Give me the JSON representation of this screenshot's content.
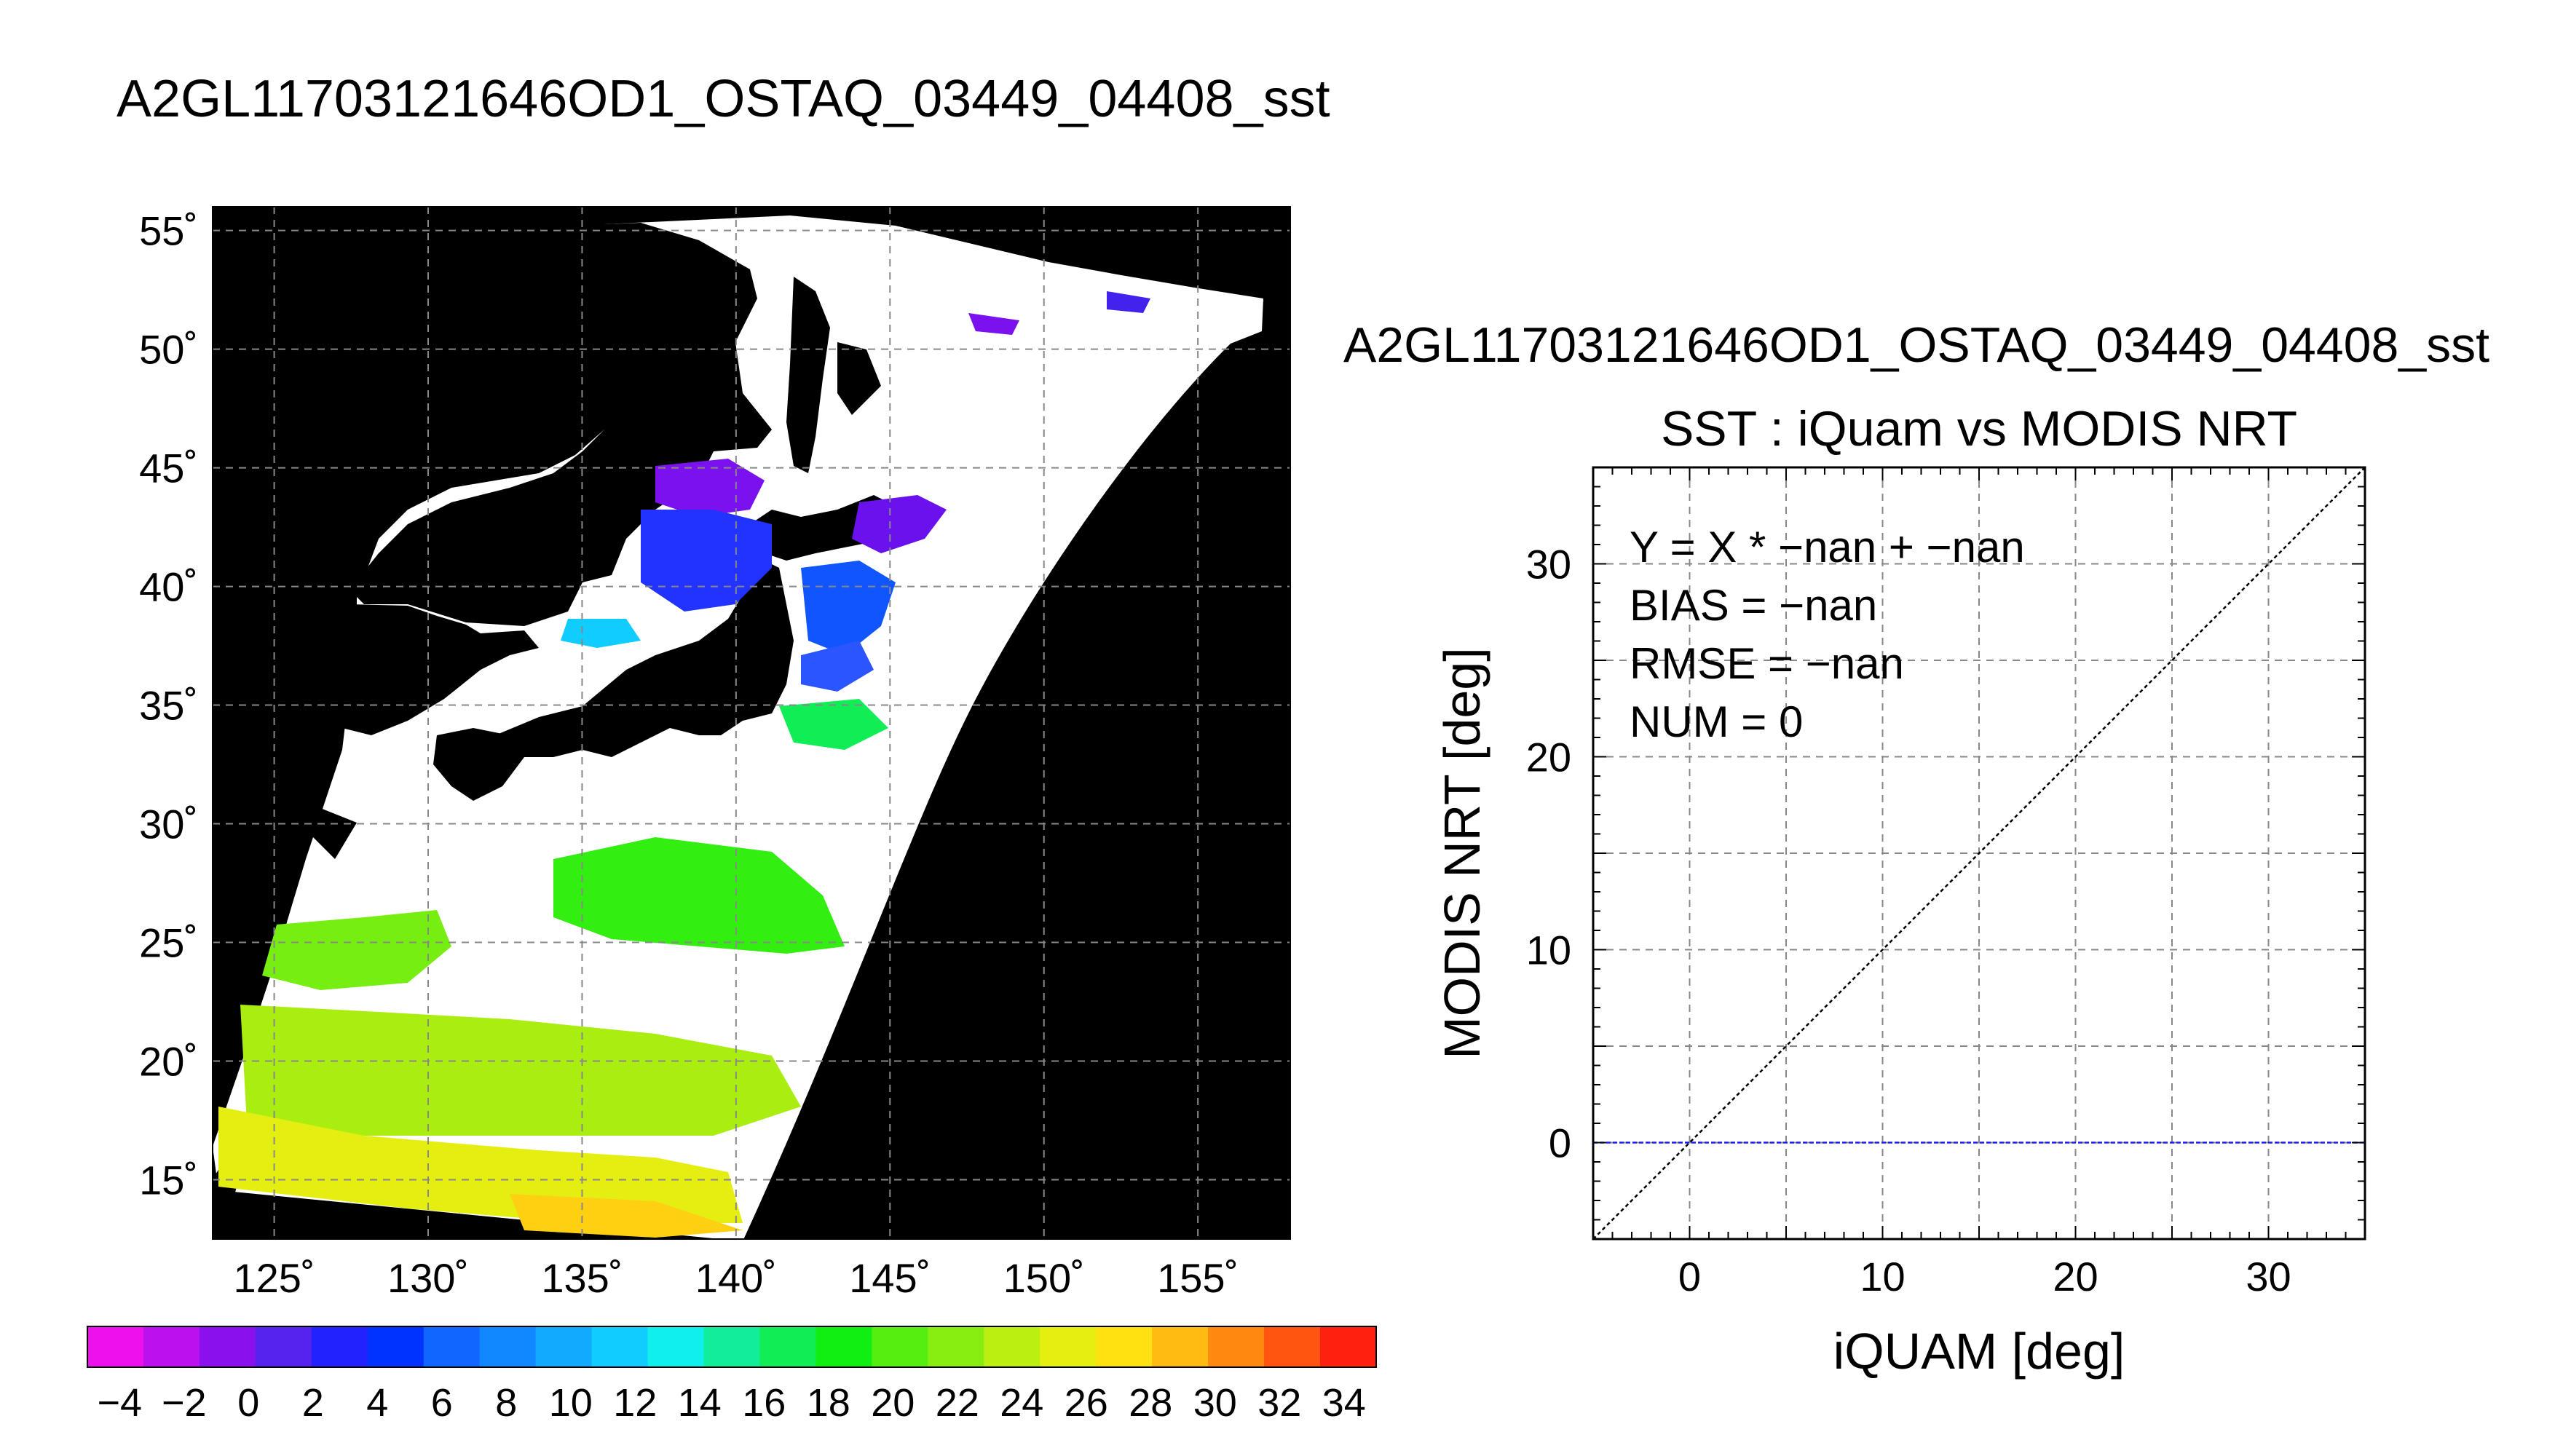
{
  "page_title": "A2GL1170312164​6OD1_OSTAQ_03449_04408_sst",
  "colors": {
    "background": "#ffffff",
    "land": "#000000",
    "nodata": "#ffffff",
    "grid": "#888888",
    "identity_line": "#000000",
    "zero_line": "#1a1aff",
    "colorbar": [
      "#ee11ee",
      "#bb11ee",
      "#8a11ee",
      "#5522ee",
      "#2222ff",
      "#0033ff",
      "#1166ff",
      "#1188ff",
      "#11aaff",
      "#11ccff",
      "#11eeee",
      "#11ee99",
      "#11ee55",
      "#11ee11",
      "#55ee11",
      "#88ee11",
      "#bbee11",
      "#e5ee11",
      "#ffe011",
      "#ffbb11",
      "#ff8811",
      "#ff5511",
      "#ff2211"
    ]
  },
  "chart_data": [
    {
      "type": "heatmap",
      "title": "",
      "x": {
        "ticks": [
          125,
          130,
          135,
          140,
          145,
          150,
          155
        ],
        "tick_labels": [
          "125˚",
          "130˚",
          "135˚",
          "140˚",
          "145˚",
          "150˚",
          "155˚"
        ],
        "range": [
          123,
          158
        ]
      },
      "y": {
        "ticks": [
          15,
          20,
          25,
          30,
          35,
          40,
          45,
          50,
          55
        ],
        "tick_labels": [
          "15˚",
          "20˚",
          "25˚",
          "30˚",
          "35˚",
          "40˚",
          "45˚",
          "50˚",
          "55˚"
        ],
        "range": [
          12.5,
          56
        ]
      },
      "grid": true,
      "colorbar": {
        "tick_values": [
          -4,
          -2,
          0,
          2,
          4,
          6,
          8,
          10,
          12,
          14,
          16,
          18,
          20,
          22,
          24,
          26,
          28,
          30,
          32,
          34
        ],
        "tick_labels": [
          "−4",
          "−2",
          "0",
          "2",
          "4",
          "6",
          "8",
          "10",
          "12",
          "14",
          "16",
          "18",
          "20",
          "22",
          "24",
          "26",
          "28",
          "30",
          "32",
          "34"
        ],
        "range": [
          -5,
          35
        ]
      }
    },
    {
      "type": "scatter",
      "header": "A2GL11703121646OD1_OSTAQ_03449_04408_sst",
      "title": "SST : iQuam vs MODIS NRT",
      "xlabel": "iQUAM [deg]",
      "ylabel": "MODIS NRT [deg]",
      "xlim": [
        -5,
        35
      ],
      "ylim": [
        -5,
        35
      ],
      "xticks": [
        0,
        10,
        20,
        30
      ],
      "yticks": [
        0,
        10,
        20,
        30
      ],
      "grid": true,
      "stats": [
        "Y = X * −nan + −nan",
        "BIAS = −nan",
        "RMSE = −nan",
        "NUM = 0"
      ],
      "points": [],
      "identity_line": true,
      "horizontal_reference": 0
    }
  ]
}
